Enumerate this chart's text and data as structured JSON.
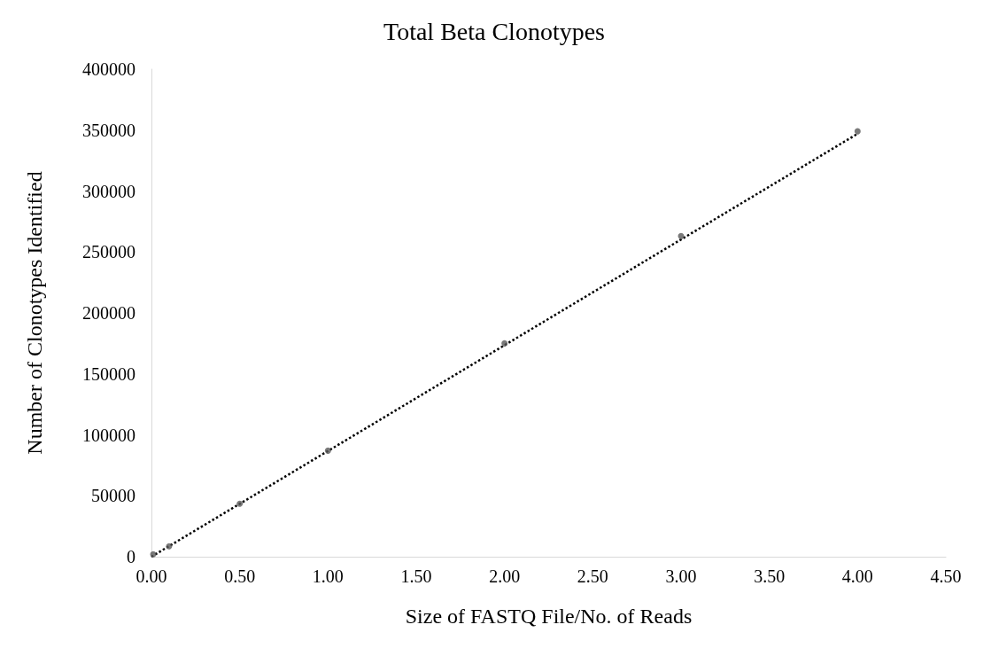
{
  "chart_data": {
    "type": "scatter",
    "title": "Total Beta Clonotypes",
    "xlabel": "Size of FASTQ File/No. of Reads",
    "ylabel": "Number of Clonotypes Identified",
    "series": [
      {
        "color": "#595959",
        "x": [
          0.01,
          0.1,
          0.5,
          1,
          2,
          3,
          4
        ],
        "values": [
          2000,
          8500,
          43500,
          87000,
          175000,
          263000,
          349000
        ]
      },
      {
        "type": "line",
        "color": "#000000",
        "line_style": "dotted",
        "marker": "none",
        "x": [
          0,
          4
        ],
        "values": [
          0,
          347000
        ]
      }
    ],
    "xlim": [
      0,
      4.5
    ],
    "xticks": [
      {
        "value": 0,
        "label": "0.00"
      },
      {
        "value": 0.5,
        "label": "0.50"
      },
      {
        "value": 1,
        "label": "1.00"
      },
      {
        "value": 1.5,
        "label": "1.50"
      },
      {
        "value": 2,
        "label": "2.00"
      },
      {
        "value": 2.5,
        "label": "2.50"
      },
      {
        "value": 3,
        "label": "3.00"
      },
      {
        "value": 3.5,
        "label": "3.50"
      },
      {
        "value": 4,
        "label": "4.00"
      },
      {
        "value": 4.5,
        "label": "4.50"
      }
    ],
    "ylim": [
      0,
      400000
    ],
    "yticks": [
      0,
      50000,
      100000,
      150000,
      200000,
      250000,
      300000,
      350000,
      400000
    ],
    "grid": false,
    "marker": "circle"
  }
}
